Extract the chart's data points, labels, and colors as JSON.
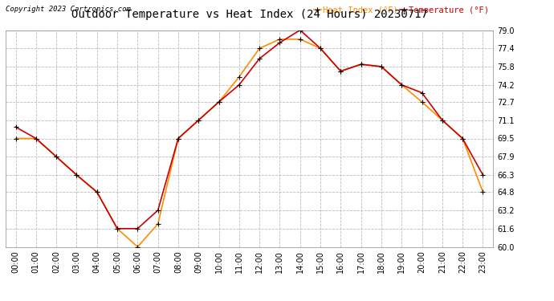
{
  "title": "Outdoor Temperature vs Heat Index (24 Hours) 20230717",
  "copyright": "Copyright 2023 Cartronics.com",
  "legend_heat": "Heat Index (°F)",
  "legend_temp": "Temperature (°F)",
  "x_labels": [
    "00:00",
    "01:00",
    "02:00",
    "03:00",
    "04:00",
    "05:00",
    "06:00",
    "07:00",
    "08:00",
    "09:00",
    "10:00",
    "11:00",
    "12:00",
    "13:00",
    "14:00",
    "15:00",
    "16:00",
    "17:00",
    "18:00",
    "19:00",
    "20:00",
    "21:00",
    "22:00",
    "23:00"
  ],
  "temperature": [
    70.5,
    69.5,
    67.9,
    66.3,
    64.8,
    61.6,
    61.6,
    63.2,
    69.5,
    71.1,
    72.7,
    74.2,
    76.5,
    77.9,
    79.0,
    77.4,
    75.4,
    76.0,
    75.8,
    74.2,
    73.5,
    71.1,
    69.5,
    66.3
  ],
  "heat_index": [
    69.5,
    69.5,
    67.9,
    66.3,
    64.8,
    61.6,
    60.0,
    62.0,
    69.5,
    71.1,
    72.7,
    74.9,
    77.4,
    78.2,
    78.2,
    77.4,
    75.4,
    76.0,
    75.8,
    74.2,
    72.7,
    71.1,
    69.5,
    64.8
  ],
  "ylim_min": 60.0,
  "ylim_max": 79.0,
  "yticks": [
    60.0,
    61.6,
    63.2,
    64.8,
    66.3,
    67.9,
    69.5,
    71.1,
    72.7,
    74.2,
    75.8,
    77.4,
    79.0
  ],
  "temp_color": "#cc0000",
  "heat_color": "#ff8c00",
  "bg_color": "#ffffff",
  "grid_color": "#bbbbbb",
  "title_color": "#000000",
  "copyright_color": "#000000",
  "marker": "+",
  "marker_color": "#000000",
  "marker_size": 5,
  "line_width": 1.2
}
